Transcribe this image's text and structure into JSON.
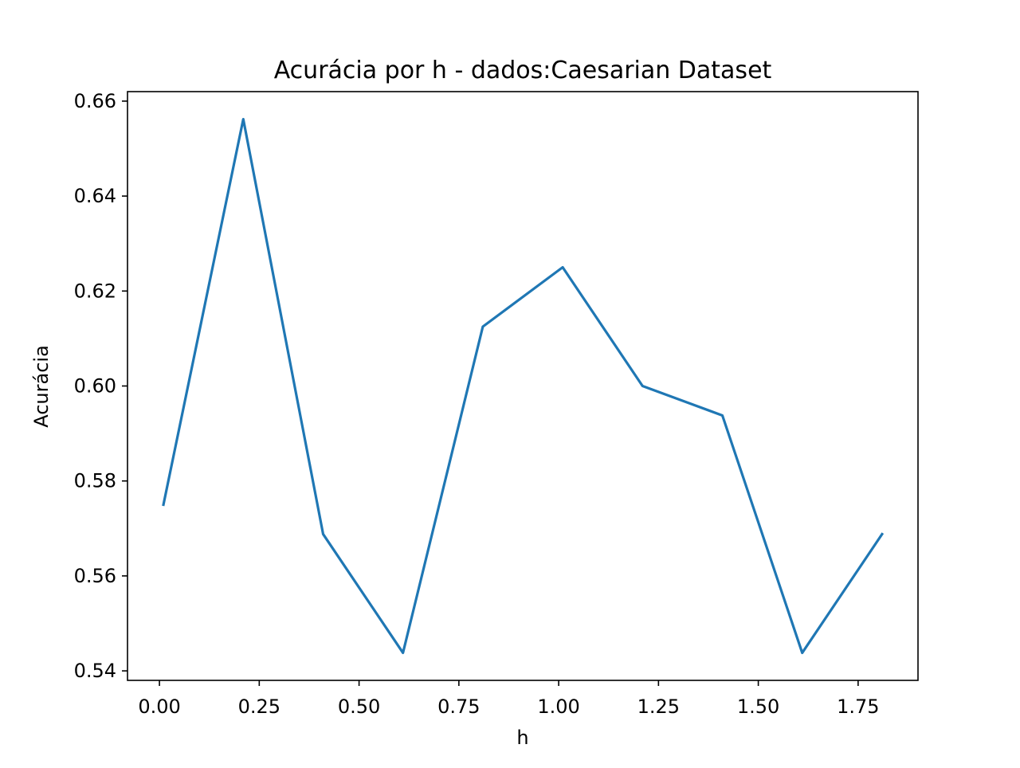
{
  "chart_data": {
    "type": "line",
    "title": "Acurácia por h - dados:Caesarian Dataset",
    "xlabel": "h",
    "ylabel": "Acurácia",
    "xlim": [
      -0.08,
      1.9
    ],
    "ylim": [
      0.538,
      0.662
    ],
    "xticks": [
      0.0,
      0.25,
      0.5,
      0.75,
      1.0,
      1.25,
      1.5,
      1.75
    ],
    "xtick_labels": [
      "0.00",
      "0.25",
      "0.50",
      "0.75",
      "1.00",
      "1.25",
      "1.50",
      "1.75"
    ],
    "yticks": [
      0.54,
      0.56,
      0.58,
      0.6,
      0.62,
      0.64,
      0.66
    ],
    "ytick_labels": [
      "0.54",
      "0.56",
      "0.58",
      "0.60",
      "0.62",
      "0.64",
      "0.66"
    ],
    "grid": false,
    "series": [
      {
        "color": "#1f77b4",
        "x": [
          0.01,
          0.21,
          0.41,
          0.61,
          0.81,
          1.01,
          1.21,
          1.41,
          1.61,
          1.81
        ],
        "y": [
          0.575,
          0.6562,
          0.5688,
          0.5438,
          0.6125,
          0.625,
          0.6,
          0.5938,
          0.5438,
          0.5688
        ]
      }
    ]
  }
}
